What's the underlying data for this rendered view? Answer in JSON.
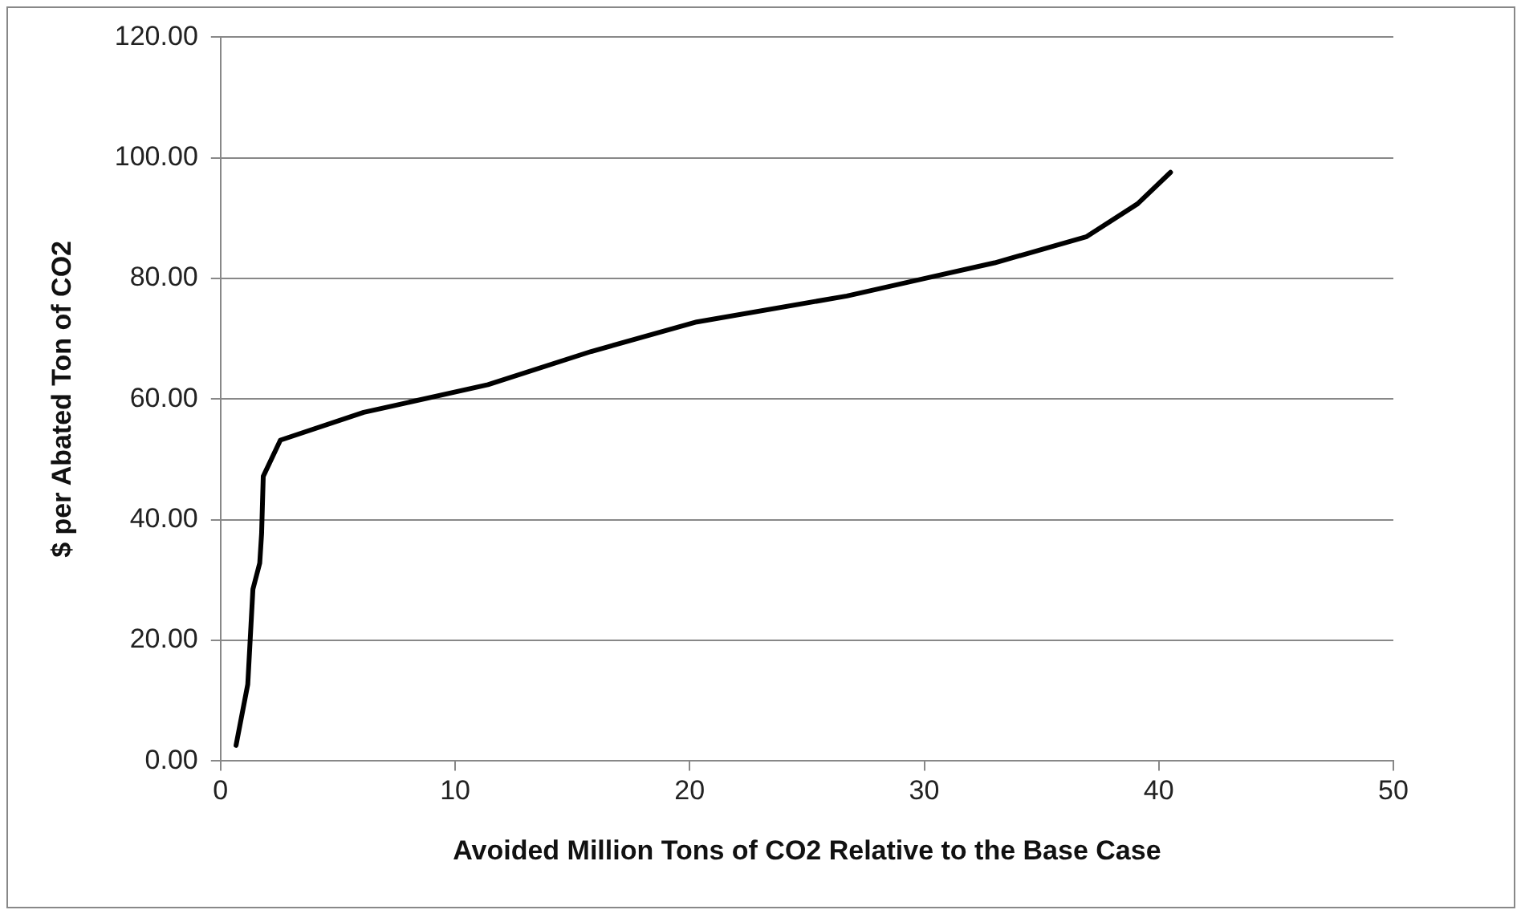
{
  "chart_data": {
    "type": "line",
    "xlabel": "Avoided Million Tons of CO2 Relative to the Base Case",
    "ylabel": "$ per Abated Ton of CO2",
    "x": [
      0.66,
      1.16,
      1.38,
      1.67,
      1.75,
      1.82,
      2.55,
      6.1,
      11.4,
      15.8,
      20.3,
      26.7,
      30,
      33,
      36.9,
      39.1,
      40.5
    ],
    "series": [
      {
        "color": "#000000",
        "values": [
          2.6,
          12.7,
          28.5,
          32.8,
          37.7,
          47.2,
          53.2,
          57.8,
          62.4,
          67.9,
          72.8,
          77.1,
          80,
          82.6,
          86.9,
          92.4,
          97.6
        ]
      }
    ],
    "xlim": [
      0,
      50
    ],
    "xticks": [
      0,
      10,
      20,
      30,
      40,
      50
    ],
    "ylim": [
      0,
      120
    ],
    "yticks": [
      {
        "value": 0,
        "label": "0.00"
      },
      {
        "value": 20,
        "label": "20.00"
      },
      {
        "value": 40,
        "label": "40.00"
      },
      {
        "value": 60,
        "label": "60.00"
      },
      {
        "value": 80,
        "label": "80.00"
      },
      {
        "value": 100,
        "label": "100.00"
      },
      {
        "value": 120,
        "label": "120.00"
      }
    ],
    "grid": "y",
    "legend": false,
    "marker": "none",
    "line_style": "solid"
  }
}
